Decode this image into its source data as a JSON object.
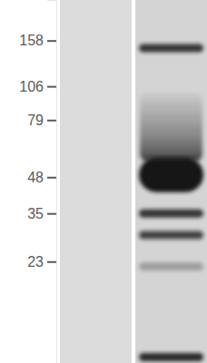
{
  "chart_data": {
    "type": "western_blot",
    "log": "y",
    "ylim": [
      225,
      9.5
    ],
    "yticks": [
      158,
      106,
      79,
      48,
      35,
      23
    ],
    "tick_labels": "y",
    "categories": [
      null,
      null
    ],
    "lanes": [
      {
        "bands": [],
        "intensities": [],
        "smear": []
      },
      {
        "bands": [
          148,
          49,
          35,
          29,
          22,
          10
        ],
        "intensities": [
          0.85,
          1,
          0.85,
          0.75,
          0.25,
          0.9
        ],
        "smear": [
          100,
          55
        ]
      }
    ]
  }
}
